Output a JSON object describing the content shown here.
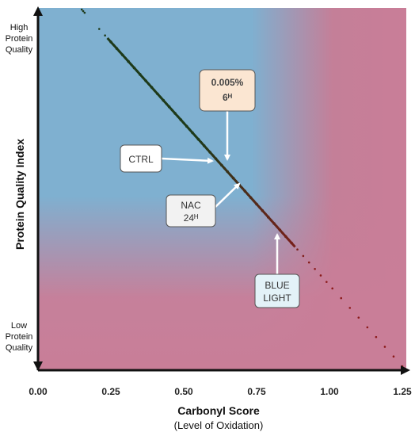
{
  "chart_data": {
    "type": "scatter",
    "title": "",
    "xlabel": "Carbonyl Score",
    "xlabel_sub": "(Level of Oxidation)",
    "ylabel": "Protein Quality Index",
    "xlim": [
      0,
      1.25
    ],
    "x_ticks": [
      "0.00",
      "0.25",
      "0.50",
      "0.75",
      "1.00",
      "1.25"
    ],
    "y_labels": {
      "high": [
        "High",
        "Protein",
        "Quality"
      ],
      "low": [
        "Low",
        "Protein",
        "Quality"
      ]
    },
    "background_colors": {
      "good": "#7fb0d0",
      "bad": "#c97e98"
    },
    "point_colors": {
      "low_oxidation": "#1e3a1a",
      "high_oxidation": "#8b1a1a"
    },
    "series": [
      {
        "x": [
          0.15,
          0.155,
          0.16,
          0.21,
          0.23,
          0.25,
          0.27,
          0.29,
          0.31,
          0.33,
          0.35,
          0.37,
          0.39,
          0.41,
          0.43,
          0.45,
          0.47,
          0.49,
          0.51,
          0.53,
          0.55,
          0.57,
          0.59,
          0.61,
          0.63,
          0.65,
          0.67,
          0.69,
          0.71,
          0.73,
          0.75,
          0.77,
          0.79,
          0.81,
          0.83,
          0.85,
          0.87,
          0.89,
          0.91,
          0.93,
          0.95,
          0.97,
          0.99,
          1.01,
          1.04,
          1.07,
          1.1,
          1.13,
          1.16,
          1.19,
          1.22,
          1.25
        ]
      }
    ],
    "annotations": [
      {
        "id": "conc",
        "lines": [
          "0.005%",
          "6ᴴ"
        ]
      },
      {
        "id": "ctrl",
        "lines": [
          "CTRL"
        ]
      },
      {
        "id": "nac",
        "lines": [
          "NAC",
          "24ᴴ"
        ]
      },
      {
        "id": "blue",
        "lines": [
          "BLUE",
          "LIGHT"
        ]
      }
    ]
  }
}
